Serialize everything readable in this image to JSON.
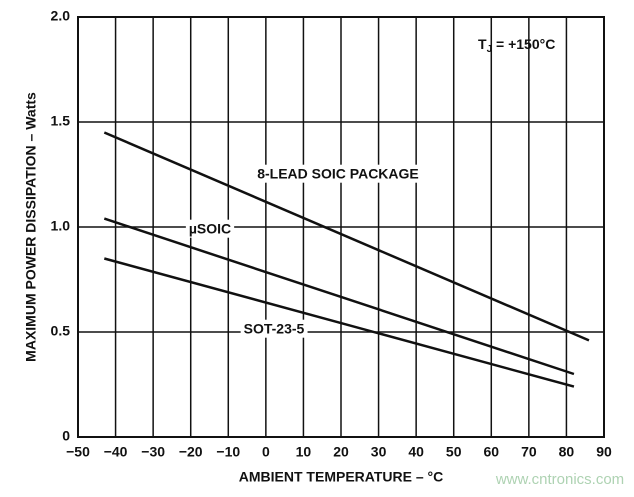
{
  "chart_data": {
    "type": "line",
    "annotation": {
      "main": "T",
      "sub": "J",
      "rest": " = +150°C"
    },
    "x_label": "AMBIENT TEMPERATURE – °C",
    "y_label": "MAXIMUM POWER DISSIPATION – Watts",
    "watermark": "www.cntronics.com",
    "xlim": [
      -50,
      90
    ],
    "ylim": [
      0,
      2.0
    ],
    "xticks": [
      {
        "value": -50,
        "label": "−50"
      },
      {
        "value": -40,
        "label": "−40"
      },
      {
        "value": -30,
        "label": "−30"
      },
      {
        "value": -20,
        "label": "−20"
      },
      {
        "value": -10,
        "label": "−10"
      },
      0,
      10,
      20,
      30,
      40,
      50,
      60,
      70,
      80,
      90
    ],
    "yticks": [
      0,
      0.5,
      {
        "value": 1.0,
        "label": "1.0"
      },
      {
        "value": 1.5,
        "label": "1.5"
      },
      {
        "value": 2.0,
        "label": "2.0"
      }
    ],
    "grid": true,
    "series": [
      {
        "name": "8-LEAD SOIC PACKAGE",
        "color": "#111111",
        "x": [
          -43,
          86
        ],
        "values": [
          1.45,
          0.46
        ]
      },
      {
        "name": "µSOIC",
        "color": "#111111",
        "x": [
          -43,
          82
        ],
        "values": [
          1.04,
          0.3
        ]
      },
      {
        "name": "SOT-23-5",
        "color": "#111111",
        "x": [
          -43,
          82
        ],
        "values": [
          0.85,
          0.24
        ]
      }
    ]
  }
}
